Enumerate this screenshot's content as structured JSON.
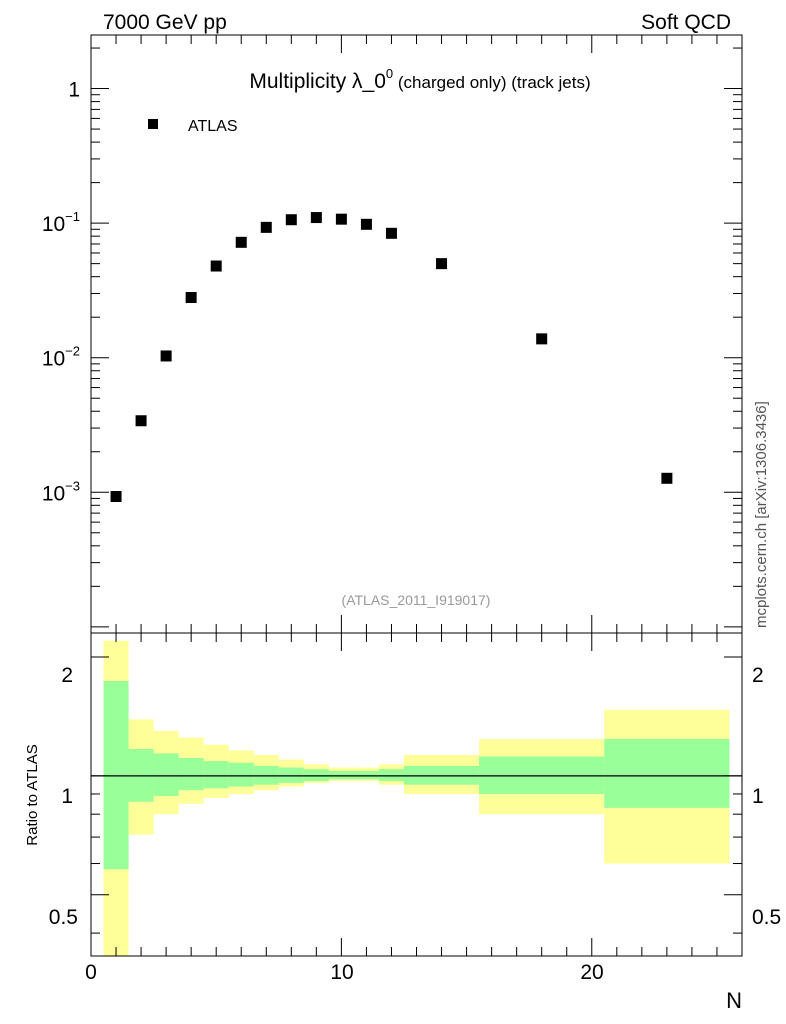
{
  "header": {
    "left": "7000 GeV pp",
    "right": "Soft QCD"
  },
  "side_label": "mcplots.cern.ch [arXiv:1306.3436]",
  "chart_data": [
    {
      "type": "scatter",
      "panel": "main",
      "title_main": "Multiplicity λ_0",
      "title_sup": "0",
      "title_rest": " (charged only) (track jets)",
      "legend": [
        {
          "name": "ATLAS",
          "marker": "square",
          "color": "#000000"
        }
      ],
      "legend_position": "top-left",
      "analysis_label": "(ATLAS_2011_I919017)",
      "xscale": "linear",
      "yscale": "log",
      "xlim": [
        0,
        26
      ],
      "ylim": [
        9e-05,
        2.5
      ],
      "yticks": [
        {
          "value": 0.001,
          "base": "10",
          "exp": "−3"
        },
        {
          "value": 0.01,
          "base": "10",
          "exp": "−2"
        },
        {
          "value": 0.1,
          "base": "10",
          "exp": "−1"
        },
        {
          "value": 1,
          "base": "1",
          "exp": ""
        }
      ],
      "series": [
        {
          "name": "ATLAS",
          "x": [
            1,
            2,
            3,
            4,
            5,
            6,
            7,
            8,
            9,
            10,
            11,
            12,
            14,
            18,
            23
          ],
          "y": [
            0.00093,
            0.0034,
            0.0103,
            0.028,
            0.048,
            0.072,
            0.093,
            0.106,
            0.11,
            0.107,
            0.098,
            0.084,
            0.05,
            0.0138,
            0.00127
          ]
        }
      ]
    },
    {
      "type": "band",
      "panel": "ratio",
      "ylabel": "Ratio to ATLAS",
      "xlabel": "N",
      "xlim": [
        0,
        26
      ],
      "ylim": [
        0.35,
        2.3
      ],
      "yscale": "log",
      "xticks": [
        "0",
        "10",
        "20"
      ],
      "yticks": [
        "0.5",
        "1",
        "2"
      ],
      "reference_line": 1,
      "bins": [
        {
          "x0": 0.5,
          "x1": 1.5,
          "stat": [
            0.58,
            1.74
          ],
          "total": [
            0.3,
            2.2
          ]
        },
        {
          "x0": 1.5,
          "x1": 2.5,
          "stat": [
            0.86,
            1.17
          ],
          "total": [
            0.71,
            1.39
          ]
        },
        {
          "x0": 2.5,
          "x1": 3.5,
          "stat": [
            0.89,
            1.14
          ],
          "total": [
            0.8,
            1.3
          ]
        },
        {
          "x0": 3.5,
          "x1": 4.5,
          "stat": [
            0.92,
            1.11
          ],
          "total": [
            0.85,
            1.25
          ]
        },
        {
          "x0": 4.5,
          "x1": 5.5,
          "stat": [
            0.93,
            1.09
          ],
          "total": [
            0.88,
            1.2
          ]
        },
        {
          "x0": 5.5,
          "x1": 6.5,
          "stat": [
            0.94,
            1.08
          ],
          "total": [
            0.9,
            1.16
          ]
        },
        {
          "x0": 6.5,
          "x1": 7.5,
          "stat": [
            0.95,
            1.06
          ],
          "total": [
            0.92,
            1.13
          ]
        },
        {
          "x0": 7.5,
          "x1": 8.5,
          "stat": [
            0.96,
            1.05
          ],
          "total": [
            0.94,
            1.1
          ]
        },
        {
          "x0": 8.5,
          "x1": 9.5,
          "stat": [
            0.97,
            1.04
          ],
          "total": [
            0.96,
            1.07
          ]
        },
        {
          "x0": 9.5,
          "x1": 10.5,
          "stat": [
            0.98,
            1.03
          ],
          "total": [
            0.97,
            1.05
          ]
        },
        {
          "x0": 10.5,
          "x1": 11.5,
          "stat": [
            0.98,
            1.03
          ],
          "total": [
            0.97,
            1.05
          ]
        },
        {
          "x0": 11.5,
          "x1": 12.5,
          "stat": [
            0.97,
            1.04
          ],
          "total": [
            0.95,
            1.07
          ]
        },
        {
          "x0": 12.5,
          "x1": 15.5,
          "stat": [
            0.95,
            1.06
          ],
          "total": [
            0.9,
            1.13
          ]
        },
        {
          "x0": 15.5,
          "x1": 20.5,
          "stat": [
            0.9,
            1.12
          ],
          "total": [
            0.8,
            1.24
          ]
        },
        {
          "x0": 20.5,
          "x1": 25.5,
          "stat": [
            0.83,
            1.24
          ],
          "total": [
            0.6,
            1.47
          ]
        }
      ],
      "colors": {
        "stat": "#99ff99",
        "total": "#ffff99",
        "line": "#000000"
      }
    }
  ]
}
